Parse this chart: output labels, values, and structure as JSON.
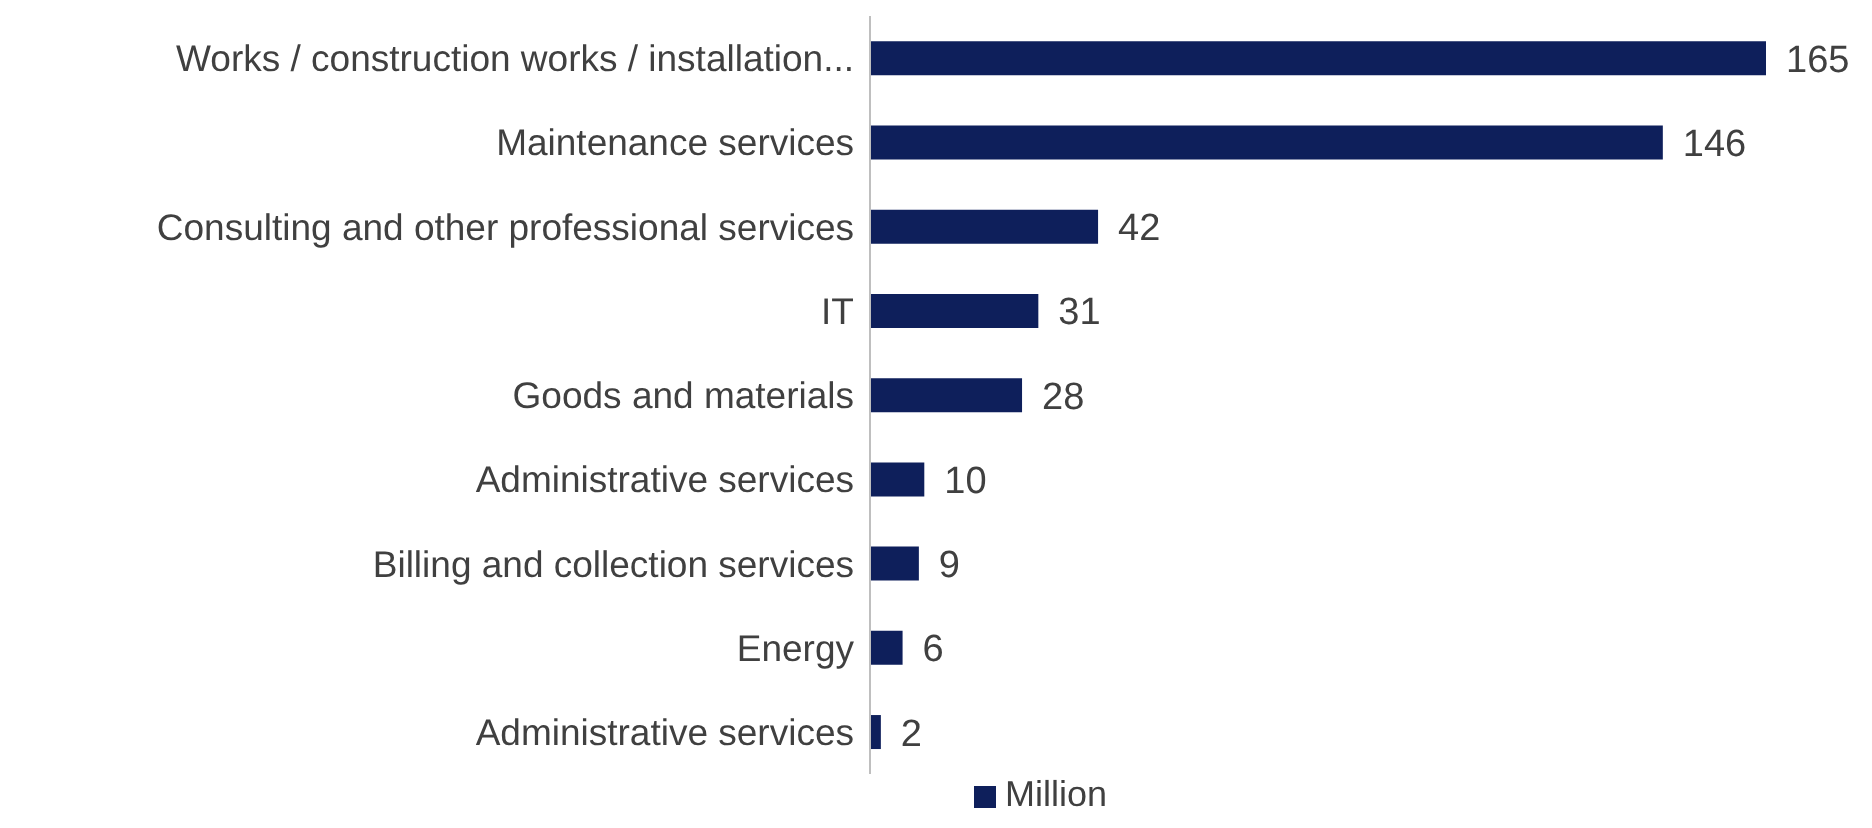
{
  "chart_data": {
    "type": "bar",
    "orientation": "horizontal",
    "categories": [
      "Works / construction works / installation...",
      "Maintenance services",
      "Consulting and other professional services",
      "IT",
      "Goods and materials",
      "Administrative  services",
      "Billing and collection services",
      "Energy",
      "Administrative services"
    ],
    "series": [
      {
        "name": "Million",
        "color": "#0e1f5b",
        "values": [
          165,
          146,
          42,
          31,
          28,
          10,
          9,
          6,
          2
        ]
      }
    ],
    "data_labels": true,
    "legend": "bottom",
    "grid": false
  }
}
